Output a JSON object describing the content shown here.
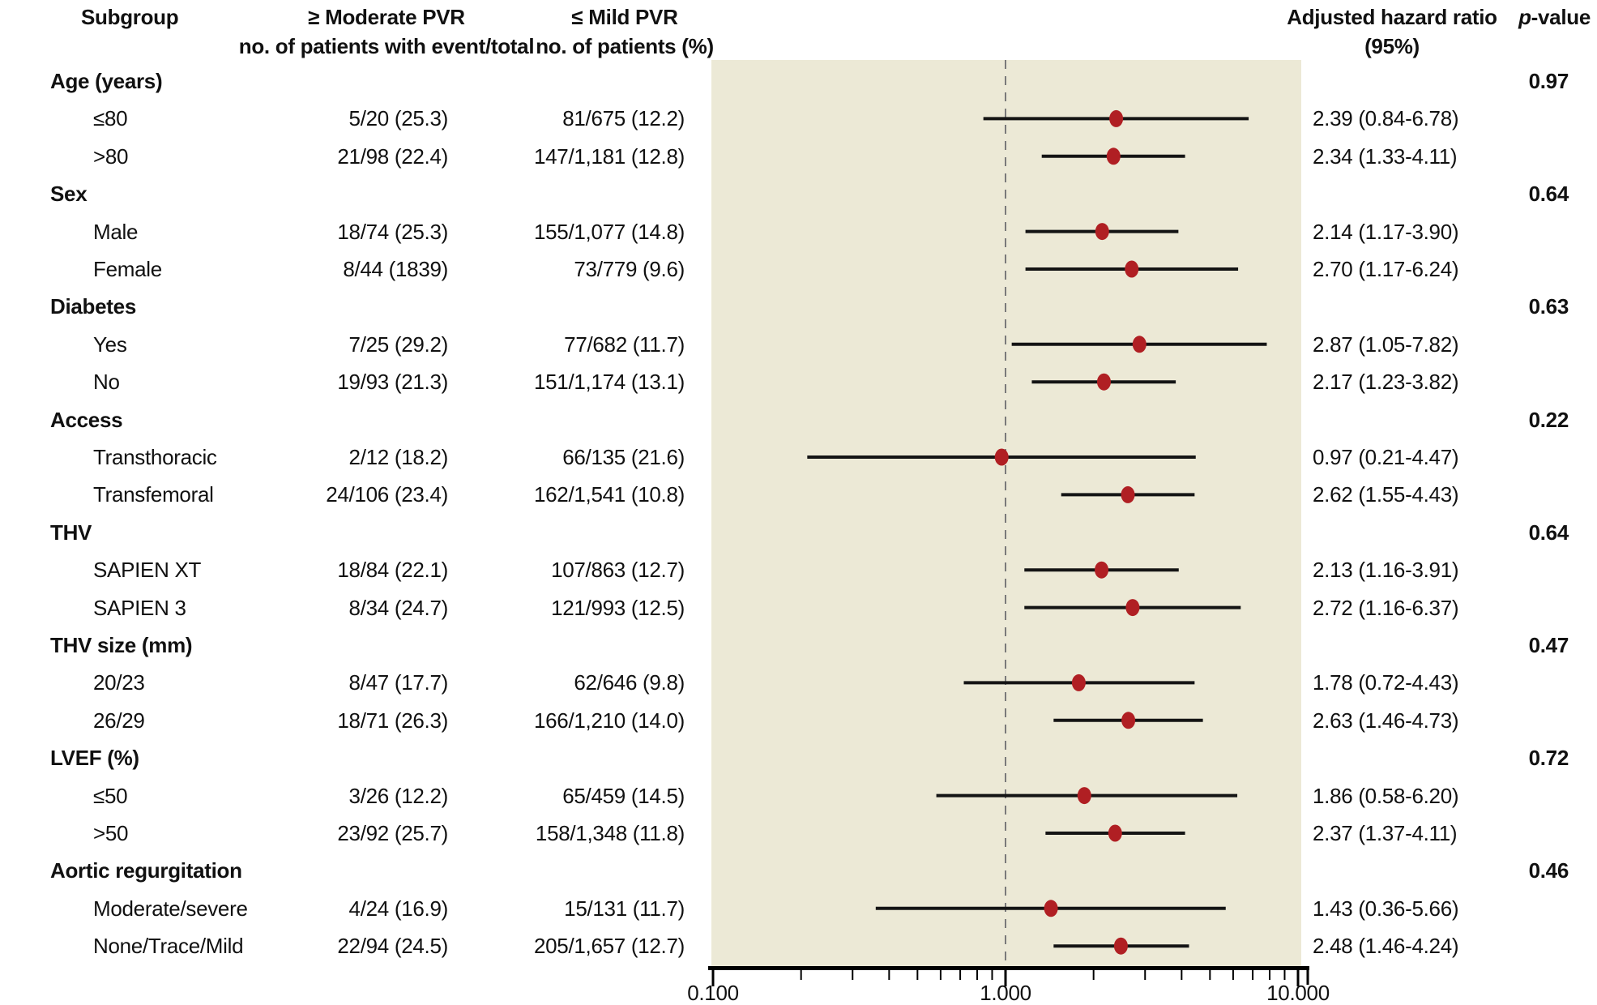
{
  "header": {
    "subgroup": "Subgroup",
    "moderate_line1": "≥ Moderate PVR",
    "moderate_line2": "no. of patients with event/total",
    "mild_line1": "≤ Mild PVR",
    "mild_line2": "no. of patients (%)",
    "hr_line1": "Adjusted hazard ratio",
    "hr_line2": "(95%)",
    "p_italic": "p",
    "p_rest": "-value"
  },
  "colors": {
    "plot_bg": "#ece9d6",
    "marker": "#b01f23",
    "ci_line": "#141414",
    "reference_line": "#7a7a7a",
    "axis": "#000000"
  },
  "chart_data": {
    "type": "forest",
    "x_scale": "log",
    "xlim": [
      0.1,
      10
    ],
    "reference_line": 1.0,
    "x_ticks": [
      0.1,
      1,
      10
    ],
    "x_tick_labels": [
      "0.100",
      "1.000",
      "10.000"
    ],
    "minor_ticks": [
      0.2,
      0.3,
      0.4,
      0.5,
      0.6,
      0.7,
      0.8,
      0.9,
      2,
      3,
      4,
      5,
      6,
      7,
      8,
      9
    ],
    "sections": [
      {
        "label": "Age (years)",
        "p_value": "0.97",
        "rows": [
          {
            "label": "≤80",
            "moderate": "5/20 (25.3)",
            "mild": "81/675 (12.2)",
            "hr_text": "2.39 (0.84-6.78)",
            "hr": 2.39,
            "lo": 0.84,
            "hi": 6.78
          },
          {
            "label": ">80",
            "moderate": "21/98 (22.4)",
            "mild": "147/1,181 (12.8)",
            "hr_text": "2.34 (1.33-4.11)",
            "hr": 2.34,
            "lo": 1.33,
            "hi": 4.11
          }
        ]
      },
      {
        "label": "Sex",
        "p_value": "0.64",
        "rows": [
          {
            "label": "Male",
            "moderate": "18/74 (25.3)",
            "mild": "155/1,077 (14.8)",
            "hr_text": "2.14 (1.17-3.90)",
            "hr": 2.14,
            "lo": 1.17,
            "hi": 3.9
          },
          {
            "label": "Female",
            "moderate": "8/44 (1839)",
            "mild": "73/779 (9.6)",
            "hr_text": "2.70 (1.17-6.24)",
            "hr": 2.7,
            "lo": 1.17,
            "hi": 6.24
          }
        ]
      },
      {
        "label": "Diabetes",
        "p_value": "0.63",
        "rows": [
          {
            "label": "Yes",
            "moderate": "7/25 (29.2)",
            "mild": "77/682 (11.7)",
            "hr_text": "2.87 (1.05-7.82)",
            "hr": 2.87,
            "lo": 1.05,
            "hi": 7.82
          },
          {
            "label": "No",
            "moderate": "19/93 (21.3)",
            "mild": "151/1,174 (13.1)",
            "hr_text": "2.17 (1.23-3.82)",
            "hr": 2.17,
            "lo": 1.23,
            "hi": 3.82
          }
        ]
      },
      {
        "label": "Access",
        "p_value": "0.22",
        "rows": [
          {
            "label": "Transthoracic",
            "moderate": "2/12 (18.2)",
            "mild": "66/135 (21.6)",
            "hr_text": "0.97 (0.21-4.47)",
            "hr": 0.97,
            "lo": 0.21,
            "hi": 4.47
          },
          {
            "label": "Transfemoral",
            "moderate": "24/106 (23.4)",
            "mild": "162/1,541 (10.8)",
            "hr_text": "2.62 (1.55-4.43)",
            "hr": 2.62,
            "lo": 1.55,
            "hi": 4.43
          }
        ]
      },
      {
        "label": "THV",
        "p_value": "0.64",
        "rows": [
          {
            "label": "SAPIEN XT",
            "moderate": "18/84 (22.1)",
            "mild": "107/863 (12.7)",
            "hr_text": "2.13 (1.16-3.91)",
            "hr": 2.13,
            "lo": 1.16,
            "hi": 3.91
          },
          {
            "label": "SAPIEN 3",
            "moderate": "8/34 (24.7)",
            "mild": "121/993 (12.5)",
            "hr_text": "2.72 (1.16-6.37)",
            "hr": 2.72,
            "lo": 1.16,
            "hi": 6.37
          }
        ]
      },
      {
        "label": "THV size (mm)",
        "p_value": "0.47",
        "rows": [
          {
            "label": "20/23",
            "moderate": "8/47 (17.7)",
            "mild": "62/646 (9.8)",
            "hr_text": "1.78 (0.72-4.43)",
            "hr": 1.78,
            "lo": 0.72,
            "hi": 4.43
          },
          {
            "label": "26/29",
            "moderate": "18/71 (26.3)",
            "mild": "166/1,210 (14.0)",
            "hr_text": "2.63 (1.46-4.73)",
            "hr": 2.63,
            "lo": 1.46,
            "hi": 4.73
          }
        ]
      },
      {
        "label": "LVEF (%)",
        "p_value": "0.72",
        "rows": [
          {
            "label": "≤50",
            "moderate": "3/26 (12.2)",
            "mild": "65/459 (14.5)",
            "hr_text": "1.86 (0.58-6.20)",
            "hr": 1.86,
            "lo": 0.58,
            "hi": 6.2
          },
          {
            "label": ">50",
            "moderate": "23/92 (25.7)",
            "mild": "158/1,348 (11.8)",
            "hr_text": "2.37 (1.37-4.11)",
            "hr": 2.37,
            "lo": 1.37,
            "hi": 4.11
          }
        ]
      },
      {
        "label": "Aortic regurgitation",
        "p_value": "0.46",
        "rows": [
          {
            "label": "Moderate/severe",
            "moderate": "4/24 (16.9)",
            "mild": "15/131 (11.7)",
            "hr_text": "1.43 (0.36-5.66)",
            "hr": 1.43,
            "lo": 0.36,
            "hi": 5.66
          },
          {
            "label": "None/Trace/Mild",
            "moderate": "22/94 (24.5)",
            "mild": "205/1,657 (12.7)",
            "hr_text": "2.48 (1.46-4.24)",
            "hr": 2.48,
            "lo": 1.46,
            "hi": 4.24
          }
        ]
      }
    ]
  }
}
